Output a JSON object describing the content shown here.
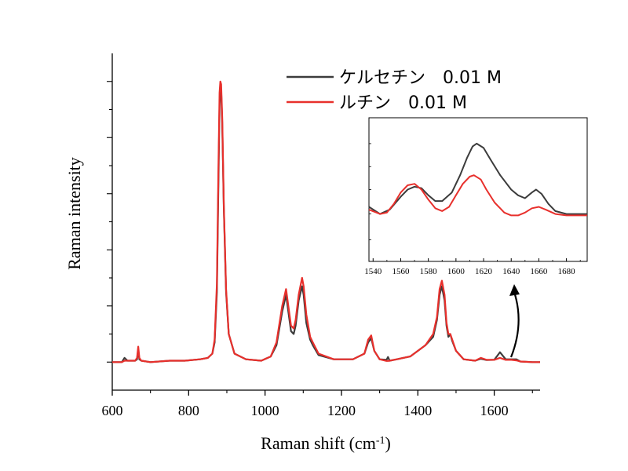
{
  "chart_data": [
    {
      "type": "line",
      "xlabel": "Raman shift (cm",
      "xlabel_sup": "-1",
      "xlabel_close": ")",
      "ylabel": "Raman intensity",
      "xlim": [
        600,
        1720
      ],
      "ylim": [
        -0.1,
        1.1
      ],
      "x_ticks": [
        600,
        800,
        1000,
        1200,
        1400,
        1600
      ],
      "y_tick_labels": "none",
      "grid": false,
      "legend_position": "top-right",
      "series": [
        {
          "name": "ケルセチン　0.01 M",
          "color": "#3c3c3c",
          "x": [
            600,
            625,
            632,
            640,
            660,
            665,
            668,
            671,
            676,
            700,
            750,
            790,
            830,
            850,
            862,
            868,
            874,
            878,
            881,
            883,
            885,
            888,
            892,
            898,
            905,
            920,
            950,
            990,
            1015,
            1030,
            1045,
            1055,
            1061,
            1068,
            1075,
            1080,
            1088,
            1097,
            1101,
            1108,
            1118,
            1125,
            1140,
            1180,
            1230,
            1260,
            1270,
            1278,
            1286,
            1300,
            1318,
            1322,
            1326,
            1345,
            1380,
            1420,
            1440,
            1450,
            1457,
            1463,
            1470,
            1475,
            1480,
            1485,
            1490,
            1500,
            1520,
            1550,
            1565,
            1580,
            1600,
            1615,
            1630,
            1645,
            1658,
            1668,
            1700,
            1720
          ],
          "y": [
            0.0,
            0.0,
            0.015,
            0.005,
            0.005,
            0.01,
            0.045,
            0.01,
            0.005,
            0.0,
            0.005,
            0.005,
            0.01,
            0.015,
            0.03,
            0.07,
            0.25,
            0.65,
            0.92,
            0.98,
            0.97,
            0.85,
            0.55,
            0.25,
            0.1,
            0.03,
            0.01,
            0.005,
            0.02,
            0.06,
            0.18,
            0.24,
            0.18,
            0.11,
            0.1,
            0.13,
            0.22,
            0.27,
            0.24,
            0.14,
            0.08,
            0.06,
            0.025,
            0.01,
            0.01,
            0.03,
            0.07,
            0.085,
            0.04,
            0.01,
            0.008,
            0.018,
            0.005,
            0.01,
            0.02,
            0.06,
            0.09,
            0.15,
            0.24,
            0.27,
            0.22,
            0.13,
            0.09,
            0.1,
            0.075,
            0.04,
            0.01,
            0.005,
            0.012,
            0.007,
            0.008,
            0.035,
            0.01,
            0.01,
            0.01,
            0.002,
            0.0,
            0.0
          ]
        },
        {
          "name": "ルチン　0.01 M",
          "color": "#e8302c",
          "x": [
            600,
            625,
            632,
            640,
            660,
            665,
            668,
            671,
            676,
            700,
            750,
            790,
            830,
            850,
            862,
            868,
            874,
            878,
            881,
            883,
            885,
            888,
            892,
            898,
            905,
            920,
            950,
            990,
            1015,
            1030,
            1045,
            1055,
            1061,
            1068,
            1075,
            1080,
            1088,
            1097,
            1101,
            1108,
            1118,
            1125,
            1140,
            1180,
            1230,
            1260,
            1270,
            1278,
            1286,
            1300,
            1318,
            1322,
            1326,
            1345,
            1380,
            1420,
            1440,
            1450,
            1457,
            1463,
            1470,
            1475,
            1480,
            1485,
            1490,
            1500,
            1520,
            1550,
            1565,
            1580,
            1600,
            1615,
            1630,
            1645,
            1658,
            1668,
            1700,
            1720
          ],
          "y": [
            0.0,
            0.0,
            0.005,
            0.005,
            0.005,
            0.015,
            0.055,
            0.015,
            0.005,
            0.0,
            0.005,
            0.005,
            0.01,
            0.015,
            0.03,
            0.08,
            0.28,
            0.7,
            0.96,
            1.0,
            0.99,
            0.87,
            0.56,
            0.26,
            0.1,
            0.03,
            0.01,
            0.005,
            0.02,
            0.07,
            0.2,
            0.26,
            0.2,
            0.13,
            0.12,
            0.15,
            0.24,
            0.3,
            0.27,
            0.17,
            0.09,
            0.07,
            0.03,
            0.01,
            0.01,
            0.03,
            0.08,
            0.095,
            0.04,
            0.01,
            0.004,
            0.004,
            0.005,
            0.01,
            0.02,
            0.06,
            0.1,
            0.16,
            0.26,
            0.29,
            0.24,
            0.14,
            0.1,
            0.1,
            0.08,
            0.04,
            0.01,
            0.005,
            0.015,
            0.008,
            0.008,
            0.015,
            0.008,
            0.008,
            0.006,
            0.002,
            0.0,
            0.0
          ]
        }
      ]
    },
    {
      "type": "line",
      "role": "inset",
      "xlim": [
        1537,
        1695
      ],
      "ylim": [
        0,
        1
      ],
      "x_ticks": [
        1540,
        1560,
        1580,
        1600,
        1620,
        1640,
        1660,
        1680
      ],
      "y_tick_labels": "none",
      "series": [
        {
          "name": "ケルセチン　0.01 M",
          "color": "#3c3c3c",
          "x": [
            1537,
            1545,
            1552,
            1560,
            1565,
            1570,
            1575,
            1580,
            1585,
            1590,
            1597,
            1603,
            1608,
            1612,
            1615,
            1620,
            1625,
            1632,
            1640,
            1645,
            1650,
            1655,
            1658,
            1662,
            1667,
            1672,
            1680,
            1695
          ],
          "y": [
            0.38,
            0.33,
            0.36,
            0.45,
            0.5,
            0.52,
            0.51,
            0.46,
            0.42,
            0.42,
            0.48,
            0.6,
            0.72,
            0.8,
            0.82,
            0.79,
            0.71,
            0.6,
            0.5,
            0.46,
            0.44,
            0.48,
            0.5,
            0.47,
            0.4,
            0.35,
            0.33,
            0.33
          ]
        },
        {
          "name": "ルチン　0.01 M",
          "color": "#e8302c",
          "x": [
            1537,
            1545,
            1550,
            1555,
            1560,
            1565,
            1570,
            1575,
            1580,
            1585,
            1590,
            1595,
            1600,
            1605,
            1610,
            1613,
            1618,
            1622,
            1628,
            1635,
            1640,
            1645,
            1650,
            1655,
            1660,
            1665,
            1672,
            1680,
            1695
          ],
          "y": [
            0.36,
            0.33,
            0.34,
            0.4,
            0.48,
            0.53,
            0.54,
            0.5,
            0.43,
            0.37,
            0.35,
            0.38,
            0.46,
            0.54,
            0.59,
            0.6,
            0.57,
            0.5,
            0.41,
            0.34,
            0.32,
            0.32,
            0.34,
            0.37,
            0.38,
            0.36,
            0.33,
            0.32,
            0.32
          ]
        }
      ]
    }
  ]
}
